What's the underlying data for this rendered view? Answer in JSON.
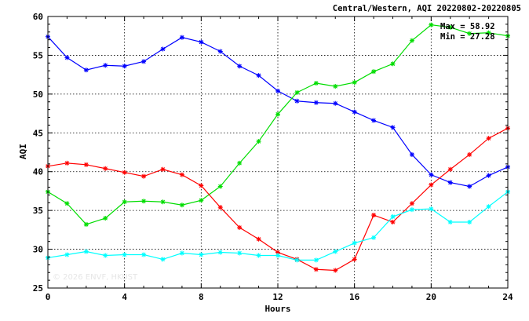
{
  "chart_data": {
    "type": "line",
    "title": "Central/Western, AQI 20220802-20220805",
    "xlabel": "Hours",
    "ylabel": "AQI",
    "xlim": [
      0,
      24
    ],
    "ylim": [
      25,
      60
    ],
    "x_ticks": [
      "0",
      "4",
      "8",
      "12",
      "16",
      "20",
      "24"
    ],
    "y_ticks": [
      "25",
      "30",
      "35",
      "40",
      "45",
      "50",
      "55",
      "60"
    ],
    "grid": true,
    "annotations": {
      "max_text": "Max = 58.92",
      "min_text": "Min = 27.28"
    },
    "watermark": "© 2026 ENVF, HKUST",
    "x": [
      0,
      1,
      2,
      3,
      4,
      5,
      6,
      7,
      8,
      9,
      10,
      11,
      12,
      13,
      14,
      15,
      16,
      17,
      18,
      19,
      20,
      21,
      22,
      23,
      24
    ],
    "series": [
      {
        "color": "#0000ff",
        "values": [
          57.4,
          54.7,
          53.1,
          53.7,
          53.6,
          54.2,
          55.8,
          57.3,
          56.7,
          55.5,
          53.6,
          52.4,
          50.4,
          49.1,
          48.9,
          48.8,
          47.7,
          46.6,
          45.7,
          42.2,
          39.6,
          38.6,
          38.1,
          39.5,
          40.6
        ]
      },
      {
        "color": "#00dd00",
        "values": [
          37.4,
          35.9,
          33.2,
          34.0,
          36.1,
          36.2,
          36.1,
          35.7,
          36.3,
          38.1,
          41.1,
          43.9,
          47.4,
          50.2,
          51.4,
          51.0,
          51.5,
          52.9,
          53.9,
          56.9,
          58.92,
          58.6,
          57.8,
          57.9,
          57.5
        ]
      },
      {
        "color": "#ff0000",
        "values": [
          40.7,
          41.1,
          40.9,
          40.4,
          39.9,
          39.4,
          40.3,
          39.6,
          38.2,
          35.4,
          32.8,
          31.3,
          29.6,
          28.7,
          27.4,
          27.28,
          28.7,
          34.4,
          33.5,
          35.9,
          38.3,
          40.3,
          42.2,
          44.3,
          45.6
        ]
      },
      {
        "color": "#00ffff",
        "values": [
          28.9,
          29.3,
          29.7,
          29.2,
          29.3,
          29.3,
          28.7,
          29.5,
          29.3,
          29.6,
          29.5,
          29.2,
          29.2,
          28.6,
          28.6,
          29.7,
          30.8,
          31.5,
          34.2,
          35.1,
          35.2,
          33.5,
          33.5,
          35.5,
          37.4
        ]
      }
    ]
  }
}
